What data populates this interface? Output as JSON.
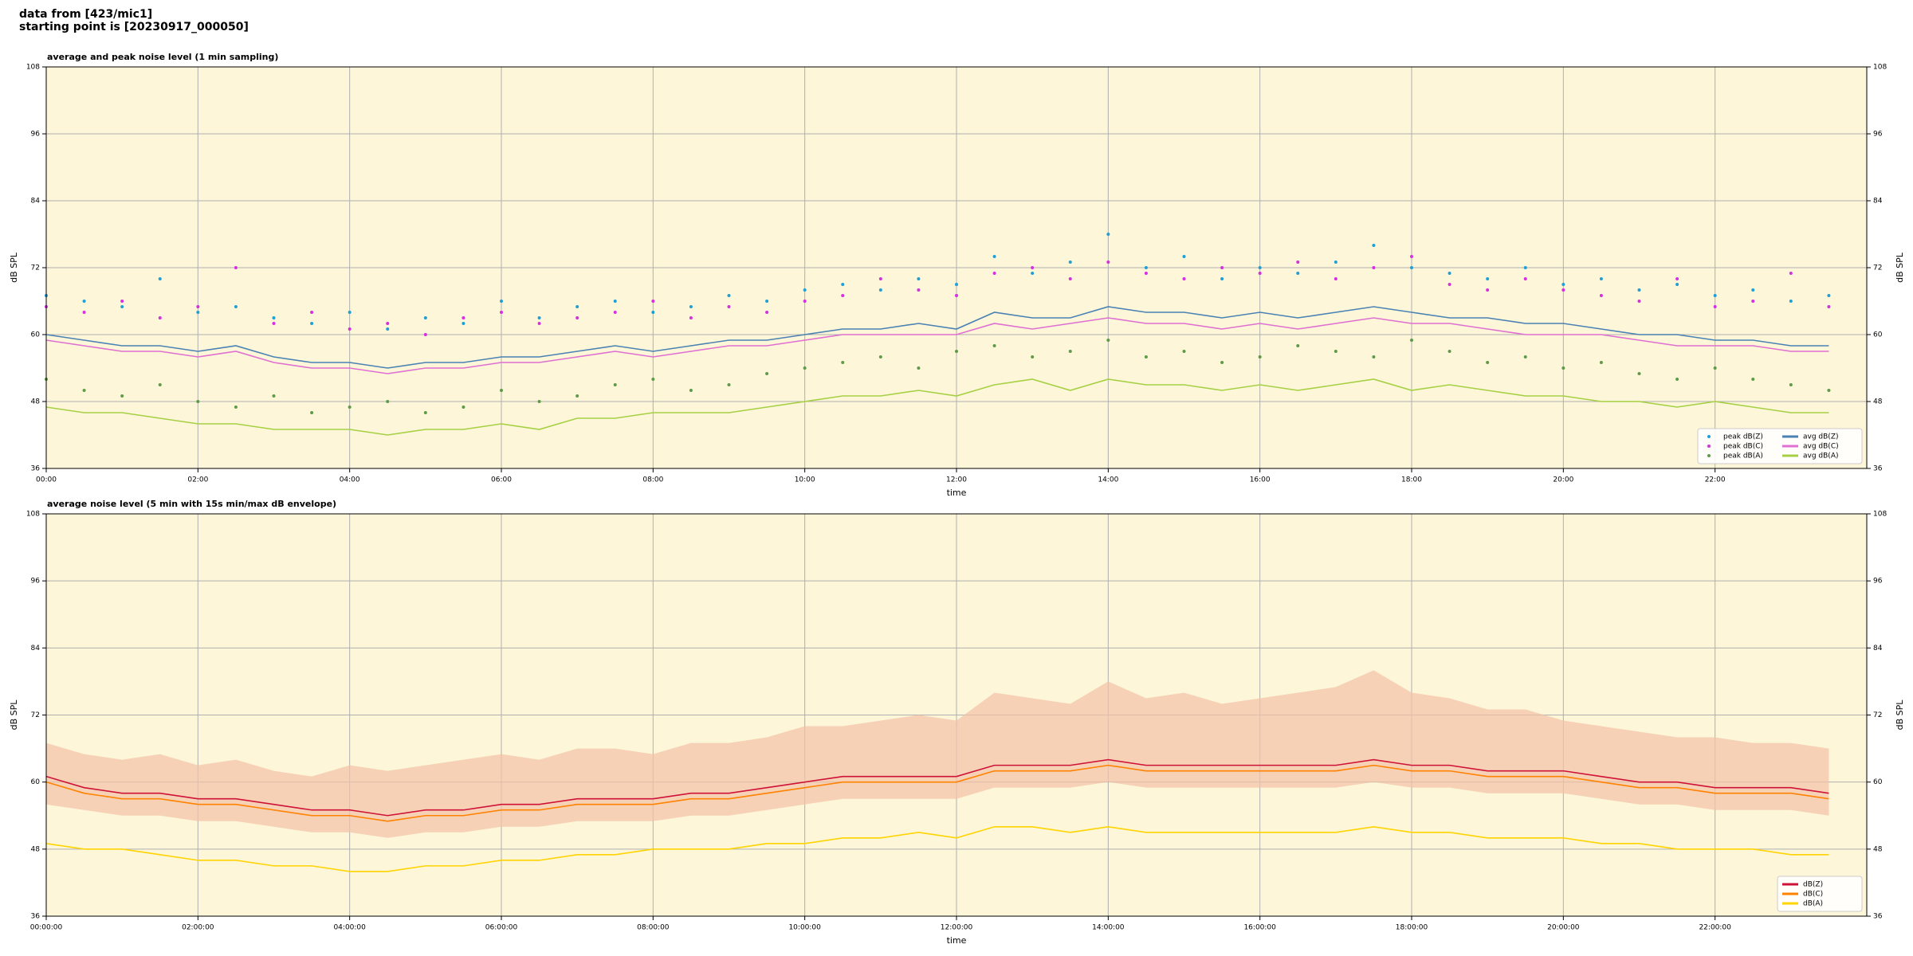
{
  "header": {
    "lines": [
      "data from [423/mic1]",
      "starting point is [20230917_000050]"
    ]
  },
  "chart_data": [
    {
      "type": "line",
      "title": "average and peak noise level (1 min sampling)",
      "xlabel": "time",
      "ylabel": "dB SPL",
      "xlim": [
        0,
        24
      ],
      "xticks": [
        {
          "value": 0,
          "label": "00:00"
        },
        {
          "value": 2,
          "label": "02:00"
        },
        {
          "value": 4,
          "label": "04:00"
        },
        {
          "value": 6,
          "label": "06:00"
        },
        {
          "value": 8,
          "label": "08:00"
        },
        {
          "value": 10,
          "label": "10:00"
        },
        {
          "value": 12,
          "label": "12:00"
        },
        {
          "value": 14,
          "label": "14:00"
        },
        {
          "value": 16,
          "label": "16:00"
        },
        {
          "value": 18,
          "label": "18:00"
        },
        {
          "value": 20,
          "label": "20:00"
        },
        {
          "value": 22,
          "label": "22:00"
        }
      ],
      "ylim": [
        36,
        108
      ],
      "yticks": [
        36,
        48,
        60,
        72,
        84,
        96,
        108
      ],
      "grid": true,
      "legend": "lower right",
      "legend_columns": 2,
      "background": "#fdf6d9",
      "x": [
        0,
        0.5,
        1,
        1.5,
        2,
        2.5,
        3,
        3.5,
        4,
        4.5,
        5,
        5.5,
        6,
        6.5,
        7,
        7.5,
        8,
        8.5,
        9,
        9.5,
        10,
        10.5,
        11,
        11.5,
        12,
        12.5,
        13,
        13.5,
        14,
        14.5,
        15,
        15.5,
        16,
        16.5,
        17,
        17.5,
        18,
        18.5,
        19,
        19.5,
        20,
        20.5,
        21,
        21.5,
        22,
        22.5,
        23,
        23.5
      ],
      "series": [
        {
          "name": "peak dB(Z)",
          "style": "scatter",
          "color": "#1f9fd6",
          "values": [
            67,
            66,
            65,
            70,
            64,
            65,
            63,
            62,
            64,
            61,
            63,
            62,
            66,
            63,
            65,
            66,
            64,
            65,
            67,
            66,
            68,
            69,
            68,
            70,
            69,
            74,
            71,
            73,
            78,
            72,
            74,
            70,
            72,
            71,
            73,
            76,
            72,
            71,
            70,
            72,
            69,
            70,
            68,
            69,
            67,
            68,
            66,
            67
          ]
        },
        {
          "name": "peak dB(C)",
          "style": "scatter",
          "color": "#d62ee0",
          "values": [
            65,
            64,
            66,
            63,
            65,
            72,
            62,
            64,
            61,
            62,
            60,
            63,
            64,
            62,
            63,
            64,
            66,
            63,
            65,
            64,
            66,
            67,
            70,
            68,
            67,
            71,
            72,
            70,
            73,
            71,
            70,
            72,
            71,
            73,
            70,
            72,
            74,
            69,
            68,
            70,
            68,
            67,
            66,
            70,
            65,
            66,
            71,
            65
          ]
        },
        {
          "name": "peak dB(A)",
          "style": "scatter",
          "color": "#5e9a48",
          "values": [
            52,
            50,
            49,
            51,
            48,
            47,
            49,
            46,
            47,
            48,
            46,
            47,
            50,
            48,
            49,
            51,
            52,
            50,
            51,
            53,
            54,
            55,
            56,
            54,
            57,
            58,
            56,
            57,
            59,
            56,
            57,
            55,
            56,
            58,
            57,
            56,
            59,
            57,
            55,
            56,
            54,
            55,
            53,
            52,
            54,
            52,
            51,
            50
          ]
        },
        {
          "name": "avg dB(Z)",
          "style": "line",
          "color": "#4a82b4",
          "values": [
            60,
            59,
            58,
            58,
            57,
            58,
            56,
            55,
            55,
            54,
            55,
            55,
            56,
            56,
            57,
            58,
            57,
            58,
            59,
            59,
            60,
            61,
            61,
            62,
            61,
            64,
            63,
            63,
            65,
            64,
            64,
            63,
            64,
            63,
            64,
            65,
            64,
            63,
            63,
            62,
            62,
            61,
            60,
            60,
            59,
            59,
            58,
            58
          ]
        },
        {
          "name": "avg dB(C)",
          "style": "line",
          "color": "#e06fd2",
          "values": [
            59,
            58,
            57,
            57,
            56,
            57,
            55,
            54,
            54,
            53,
            54,
            54,
            55,
            55,
            56,
            57,
            56,
            57,
            58,
            58,
            59,
            60,
            60,
            60,
            60,
            62,
            61,
            62,
            63,
            62,
            62,
            61,
            62,
            61,
            62,
            63,
            62,
            62,
            61,
            60,
            60,
            60,
            59,
            58,
            58,
            58,
            57,
            57
          ]
        },
        {
          "name": "avg dB(A)",
          "style": "line",
          "color": "#a6d044",
          "values": [
            47,
            46,
            46,
            45,
            44,
            44,
            43,
            43,
            43,
            42,
            43,
            43,
            44,
            43,
            45,
            45,
            46,
            46,
            46,
            47,
            48,
            49,
            49,
            50,
            49,
            51,
            52,
            50,
            52,
            51,
            51,
            50,
            51,
            50,
            51,
            52,
            50,
            51,
            50,
            49,
            49,
            48,
            48,
            47,
            48,
            47,
            46,
            46
          ]
        }
      ]
    },
    {
      "type": "line",
      "title": "average noise level (5 min with 15s min/max dB envelope)",
      "xlabel": "time",
      "ylabel": "dB SPL",
      "xlim": [
        0,
        24
      ],
      "xticks": [
        {
          "value": 0,
          "label": "00:00:00"
        },
        {
          "value": 2,
          "label": "02:00:00"
        },
        {
          "value": 4,
          "label": "04:00:00"
        },
        {
          "value": 6,
          "label": "06:00:00"
        },
        {
          "value": 8,
          "label": "08:00:00"
        },
        {
          "value": 10,
          "label": "10:00:00"
        },
        {
          "value": 12,
          "label": "12:00:00"
        },
        {
          "value": 14,
          "label": "14:00:00"
        },
        {
          "value": 16,
          "label": "16:00:00"
        },
        {
          "value": 18,
          "label": "18:00:00"
        },
        {
          "value": 20,
          "label": "20:00:00"
        },
        {
          "value": 22,
          "label": "22:00:00"
        }
      ],
      "ylim": [
        36,
        108
      ],
      "yticks": [
        36,
        48,
        60,
        72,
        84,
        96,
        108
      ],
      "grid": true,
      "legend": "lower right",
      "legend_columns": 1,
      "background": "#fdf6d9",
      "x": [
        0,
        0.5,
        1,
        1.5,
        2,
        2.5,
        3,
        3.5,
        4,
        4.5,
        5,
        5.5,
        6,
        6.5,
        7,
        7.5,
        8,
        8.5,
        9,
        9.5,
        10,
        10.5,
        11,
        11.5,
        12,
        12.5,
        13,
        13.5,
        14,
        14.5,
        15,
        15.5,
        16,
        16.5,
        17,
        17.5,
        18,
        18.5,
        19,
        19.5,
        20,
        20.5,
        21,
        21.5,
        22,
        22.5,
        23,
        23.5
      ],
      "envelope": {
        "color": "#f4c2a6",
        "upper": [
          67,
          65,
          64,
          65,
          63,
          64,
          62,
          61,
          63,
          62,
          63,
          64,
          65,
          64,
          66,
          66,
          65,
          67,
          67,
          68,
          70,
          70,
          71,
          72,
          71,
          76,
          75,
          74,
          78,
          75,
          76,
          74,
          75,
          76,
          77,
          80,
          76,
          75,
          73,
          73,
          71,
          70,
          69,
          68,
          68,
          67,
          67,
          66
        ],
        "lower": [
          56,
          55,
          54,
          54,
          53,
          53,
          52,
          51,
          51,
          50,
          51,
          51,
          52,
          52,
          53,
          53,
          53,
          54,
          54,
          55,
          56,
          57,
          57,
          57,
          57,
          59,
          59,
          59,
          60,
          59,
          59,
          59,
          59,
          59,
          59,
          60,
          59,
          59,
          58,
          58,
          58,
          57,
          56,
          56,
          55,
          55,
          55,
          54
        ]
      },
      "series": [
        {
          "name": "dB(Z)",
          "style": "line",
          "color": "#cf1238",
          "values": [
            61,
            59,
            58,
            58,
            57,
            57,
            56,
            55,
            55,
            54,
            55,
            55,
            56,
            56,
            57,
            57,
            57,
            58,
            58,
            59,
            60,
            61,
            61,
            61,
            61,
            63,
            63,
            63,
            64,
            63,
            63,
            63,
            63,
            63,
            63,
            64,
            63,
            63,
            62,
            62,
            62,
            61,
            60,
            60,
            59,
            59,
            59,
            58
          ]
        },
        {
          "name": "dB(C)",
          "style": "line",
          "color": "#ff8200",
          "values": [
            60,
            58,
            57,
            57,
            56,
            56,
            55,
            54,
            54,
            53,
            54,
            54,
            55,
            55,
            56,
            56,
            56,
            57,
            57,
            58,
            59,
            60,
            60,
            60,
            60,
            62,
            62,
            62,
            63,
            62,
            62,
            62,
            62,
            62,
            62,
            63,
            62,
            62,
            61,
            61,
            61,
            60,
            59,
            59,
            58,
            58,
            58,
            57
          ]
        },
        {
          "name": "dB(A)",
          "style": "line",
          "color": "#ffd400",
          "values": [
            49,
            48,
            48,
            47,
            46,
            46,
            45,
            45,
            44,
            44,
            45,
            45,
            46,
            46,
            47,
            47,
            48,
            48,
            48,
            49,
            49,
            50,
            50,
            51,
            50,
            52,
            52,
            51,
            52,
            51,
            51,
            51,
            51,
            51,
            51,
            52,
            51,
            51,
            50,
            50,
            50,
            49,
            49,
            48,
            48,
            48,
            47,
            47
          ]
        }
      ]
    }
  ]
}
